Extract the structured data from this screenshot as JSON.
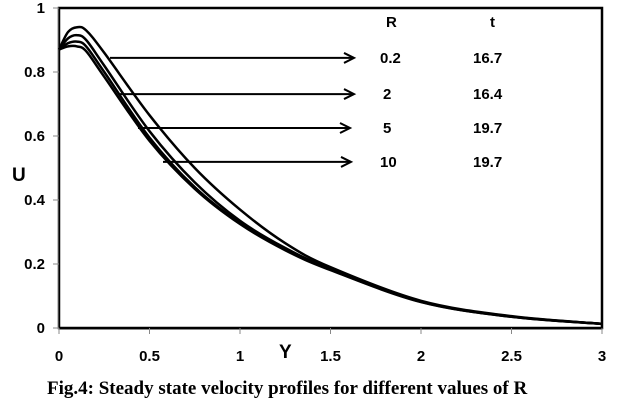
{
  "chart_data": {
    "type": "line",
    "title": "",
    "caption": "Fig.4: Steady state velocity profiles for different values of R",
    "xlabel": "Y",
    "ylabel": "U",
    "xlim": [
      0,
      3
    ],
    "ylim": [
      0,
      1
    ],
    "xticks": [
      0,
      0.5,
      1,
      1.5,
      2,
      2.5,
      3
    ],
    "xtick_labels": [
      "0",
      "0.5",
      "1",
      "1.5",
      "2",
      "2.5",
      "3"
    ],
    "yticks": [
      0,
      0.2,
      0.4,
      0.6,
      0.8,
      1
    ],
    "ytick_labels": [
      "0",
      "0.2",
      "0.4",
      "0.6",
      "0.8",
      "1"
    ],
    "grid": false,
    "legend": {
      "placement": "top-right",
      "header": [
        "R",
        "t"
      ],
      "entries": [
        {
          "R": "0.2",
          "t": "16.7"
        },
        {
          "R": "2",
          "t": "16.4"
        },
        {
          "R": "5",
          "t": "19.7"
        },
        {
          "R": "10",
          "t": "19.7"
        }
      ]
    },
    "series": [
      {
        "name": "R=0.2, t=16.7",
        "x": [
          0,
          0.05,
          0.1,
          0.15,
          0.25,
          0.5,
          0.75,
          1,
          1.25,
          1.5,
          2,
          2.5,
          3
        ],
        "y": [
          0.87,
          0.925,
          0.94,
          0.93,
          0.86,
          0.665,
          0.5,
          0.37,
          0.265,
          0.19,
          0.085,
          0.037,
          0.013
        ],
        "arrow_y": 0.844
      },
      {
        "name": "R=2, t=16.4",
        "x": [
          0,
          0.05,
          0.1,
          0.15,
          0.25,
          0.5,
          0.75,
          1,
          1.25,
          1.5,
          2,
          2.5,
          3
        ],
        "y": [
          0.87,
          0.905,
          0.915,
          0.9,
          0.82,
          0.615,
          0.455,
          0.335,
          0.25,
          0.185,
          0.083,
          0.036,
          0.013
        ],
        "arrow_y": 0.731
      },
      {
        "name": "R=5, t=19.7",
        "x": [
          0,
          0.05,
          0.1,
          0.15,
          0.25,
          0.5,
          0.75,
          1,
          1.25,
          1.5,
          2,
          2.5,
          3
        ],
        "y": [
          0.87,
          0.89,
          0.895,
          0.88,
          0.8,
          0.595,
          0.44,
          0.328,
          0.245,
          0.182,
          0.082,
          0.035,
          0.013
        ],
        "arrow_y": 0.625
      },
      {
        "name": "R=10, t=19.7",
        "x": [
          0,
          0.05,
          0.1,
          0.15,
          0.25,
          0.5,
          0.75,
          1,
          1.25,
          1.5,
          2,
          2.5,
          3
        ],
        "y": [
          0.87,
          0.88,
          0.88,
          0.865,
          0.785,
          0.585,
          0.435,
          0.325,
          0.243,
          0.181,
          0.081,
          0.035,
          0.013
        ],
        "arrow_y": 0.519
      }
    ]
  }
}
